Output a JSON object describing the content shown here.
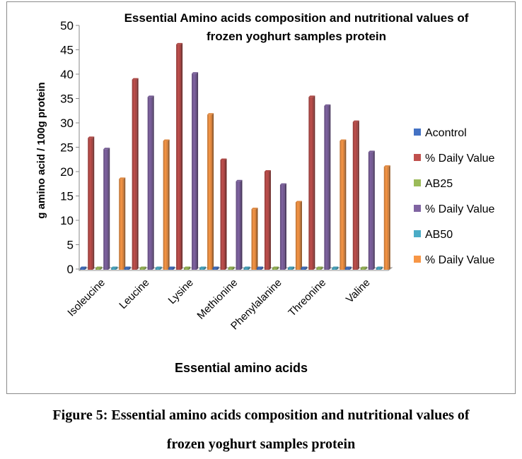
{
  "chart_data": {
    "type": "bar",
    "title": "Essential Amino acids composition and nutritional values of frozen yoghurt samples protein",
    "title_lines": [
      "Essential Amino acids composition and nutritional values of",
      "frozen yoghurt samples protein"
    ],
    "xlabel": "Essential amino acids",
    "ylabel": "g amino acid / 100g protein",
    "ylim": [
      0,
      50
    ],
    "yticks": [
      0,
      5,
      10,
      15,
      20,
      25,
      30,
      35,
      40,
      45,
      50
    ],
    "grid": false,
    "legend_position": "right",
    "categories": [
      "Isoleucine",
      "Leucine",
      "Lysine",
      "Methionine",
      "Phenylalanine",
      "Threonine",
      "Valine"
    ],
    "series": [
      {
        "name": "Acontrol",
        "color": "#4472c4",
        "values": [
          0,
          0,
          0,
          0,
          0,
          0,
          0
        ]
      },
      {
        "name": "% Daily Value",
        "color": "#c0504d",
        "values": [
          26.9,
          38.9,
          46.1,
          22.4,
          20.0,
          35.3,
          30.2
        ]
      },
      {
        "name": "AB25",
        "color": "#9bbb59",
        "values": [
          0,
          0,
          0,
          0,
          0,
          0,
          0
        ]
      },
      {
        "name": "% Daily Value",
        "color": "#8064a2",
        "values": [
          24.6,
          35.3,
          40.1,
          18.0,
          17.3,
          33.5,
          24.0
        ]
      },
      {
        "name": "AB50",
        "color": "#4bacc6",
        "values": [
          0,
          0,
          0,
          0,
          0,
          0,
          0
        ]
      },
      {
        "name": "% Daily Value",
        "color": "#f79646",
        "values": [
          18.5,
          26.3,
          31.7,
          12.3,
          13.7,
          26.3,
          21.0
        ]
      }
    ]
  },
  "caption": {
    "line1": "Figure 5: Essential amino acids composition and nutritional values of",
    "line2": "frozen yoghurt samples protein"
  }
}
